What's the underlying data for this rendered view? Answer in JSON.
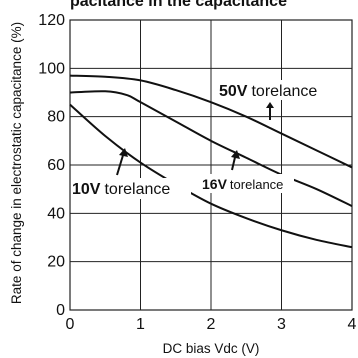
{
  "top_fragment": "pacitance in the capacitance",
  "chart_data": {
    "type": "line",
    "xlabel": "DC bias Vdc (V)",
    "ylabel": "Rate of change in electrostatic capacitance (%)",
    "xlim": [
      0,
      4
    ],
    "ylim": [
      0,
      120
    ],
    "x_ticks": [
      "0",
      "1",
      "2",
      "3",
      "4"
    ],
    "y_ticks": [
      "0",
      "20",
      "40",
      "60",
      "80",
      "100",
      "120"
    ],
    "grid": true,
    "series": [
      {
        "name": "50V torelance",
        "x": [
          0,
          0.5,
          1.0,
          1.5,
          2.0,
          2.5,
          3.0,
          3.5,
          4.0
        ],
        "y": [
          97,
          96.5,
          95,
          91,
          86,
          80,
          73,
          66,
          59
        ]
      },
      {
        "name": "16V torelance",
        "x": [
          0,
          0.5,
          0.8,
          1.0,
          1.5,
          2.0,
          2.5,
          3.0,
          3.5,
          4.0
        ],
        "y": [
          90,
          90.5,
          89,
          86,
          78,
          70,
          63,
          56,
          50,
          43
        ]
      },
      {
        "name": "10V torelance",
        "x": [
          0,
          0.5,
          1.0,
          1.5,
          2.0,
          2.5,
          3.0,
          3.5,
          4.0
        ],
        "y": [
          85,
          72,
          61,
          52,
          44,
          38,
          33,
          29,
          26
        ]
      }
    ],
    "annotations": [
      {
        "value_label": "50V",
        "unit_label": "torelance"
      },
      {
        "value_label": "16V",
        "unit_label": "torelance"
      },
      {
        "value_label": "10V",
        "unit_label": "torelance"
      }
    ]
  }
}
